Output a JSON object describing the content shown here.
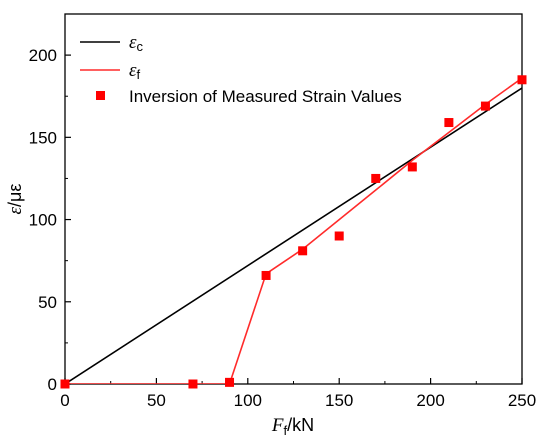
{
  "chart_data": {
    "type": "line",
    "xlabel_main": "F",
    "xlabel_sub": "f",
    "xlabel_unit": "/kN",
    "ylabel_main": "ε",
    "ylabel_unit": "/με",
    "xlim": [
      0,
      250
    ],
    "ylim": [
      0,
      225
    ],
    "xticks": [
      0,
      50,
      100,
      150,
      200,
      250
    ],
    "yticks": [
      0,
      50,
      100,
      150,
      200
    ],
    "grid": false,
    "legend_position": "top-left",
    "series": [
      {
        "name": "ε",
        "name_sub": "c",
        "kind": "line",
        "color": "#000000",
        "x": [
          0,
          250
        ],
        "y": [
          0,
          180
        ]
      },
      {
        "name": "ε",
        "name_sub": "f",
        "kind": "line",
        "color": "#ff2b2b",
        "x": [
          0,
          90,
          110,
          130,
          150,
          170,
          190,
          210,
          230,
          250
        ],
        "y": [
          0,
          0,
          67,
          82,
          100,
          118,
          136,
          153,
          170,
          186
        ]
      },
      {
        "name": "Inversion of Measured Strain Values",
        "kind": "scatter",
        "color": "#ff0000",
        "x": [
          0,
          70,
          90,
          110,
          130,
          150,
          170,
          190,
          210,
          230,
          250
        ],
        "y": [
          0,
          0,
          1,
          66,
          81,
          90,
          125,
          132,
          159,
          169,
          185
        ]
      }
    ]
  }
}
